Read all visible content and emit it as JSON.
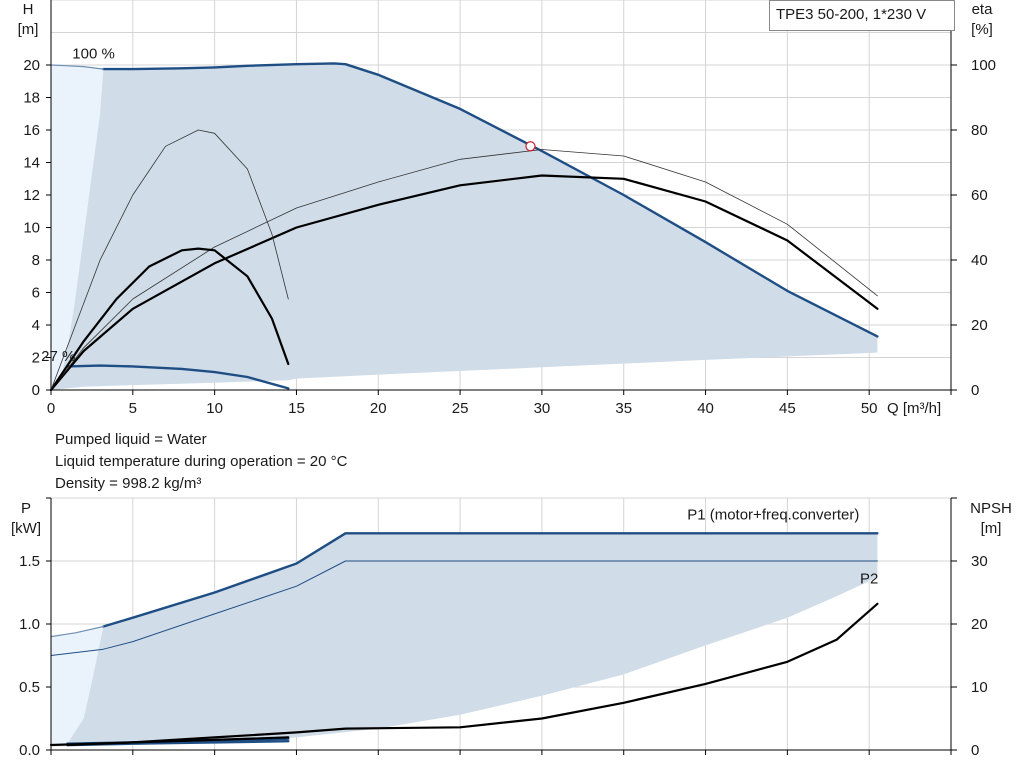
{
  "model": "TPE3 50-200, 1*230 V",
  "info": [
    "Pumped liquid = Water",
    "Liquid temperature during operation = 20 °C",
    "Density = 998.2 kg/m³"
  ],
  "colors": {
    "curve": "#1f4e85",
    "area": "#d0dce8",
    "area_light": "#eaf3fb",
    "grid": "#d4d4d4",
    "eff": "#000000"
  },
  "chart_data": [
    {
      "type": "line",
      "title": "",
      "x_axis": {
        "label": "Q [m³/h]",
        "range": [
          0,
          55
        ],
        "ticks": [
          0,
          5,
          10,
          15,
          20,
          25,
          30,
          35,
          40,
          45,
          50
        ]
      },
      "y_axis_left": {
        "label": [
          "H",
          "[m]"
        ],
        "range": [
          0,
          24
        ],
        "ticks": [
          0,
          2,
          4,
          6,
          8,
          10,
          12,
          14,
          16,
          18,
          20
        ]
      },
      "y_axis_right": {
        "label": [
          "eta",
          "[%]"
        ],
        "range": [
          0,
          120
        ],
        "ticks": [
          0,
          20,
          40,
          60,
          80,
          100
        ]
      },
      "grid": true,
      "annotations": [
        {
          "text": "100 %",
          "x": 1.3,
          "y": 20.7
        },
        {
          "text": "27 %",
          "x": -0.6,
          "y": 2.1
        }
      ],
      "operating_point": {
        "x": 29.3,
        "y": 15.0
      },
      "area_outer": [
        [
          0,
          20
        ],
        [
          0.8,
          19.95
        ],
        [
          1.6,
          19.9
        ],
        [
          2.4,
          19.85
        ],
        [
          3.2,
          19.8
        ],
        [
          3.2,
          19.75
        ],
        [
          5,
          19.75
        ],
        [
          8,
          19.8
        ],
        [
          10,
          19.85
        ],
        [
          12,
          19.95
        ],
        [
          15,
          20.05
        ],
        [
          17.3,
          20.1
        ],
        [
          18,
          20.05
        ],
        [
          20,
          19.4
        ],
        [
          25,
          17.3
        ],
        [
          30,
          14.7
        ],
        [
          35,
          12.0
        ],
        [
          40,
          9.1
        ],
        [
          45,
          6.1
        ],
        [
          50.5,
          3.3
        ],
        [
          50.5,
          2.3
        ],
        [
          40,
          1.85
        ],
        [
          30,
          1.4
        ],
        [
          20,
          0.95
        ],
        [
          15,
          0.7
        ],
        [
          14.5,
          0.6
        ],
        [
          10,
          0.45
        ],
        [
          5,
          0.3
        ],
        [
          2,
          0.2
        ],
        [
          0,
          0
        ]
      ],
      "area_light": [
        [
          0,
          20
        ],
        [
          0.8,
          19.95
        ],
        [
          1.6,
          19.9
        ],
        [
          2.4,
          19.85
        ],
        [
          3.2,
          19.75
        ],
        [
          3.0,
          17
        ],
        [
          2.6,
          14
        ],
        [
          2.2,
          11
        ],
        [
          1.8,
          8
        ],
        [
          1.4,
          5
        ],
        [
          1.0,
          2.5
        ],
        [
          0.7,
          1.2
        ],
        [
          0,
          0
        ]
      ],
      "series": [
        {
          "role": "head_max",
          "points": [
            [
              3.2,
              19.75
            ],
            [
              5,
              19.75
            ],
            [
              8,
              19.8
            ],
            [
              10,
              19.85
            ],
            [
              12,
              19.95
            ],
            [
              15,
              20.05
            ],
            [
              17.3,
              20.1
            ],
            [
              18,
              20.05
            ],
            [
              20,
              19.4
            ],
            [
              25,
              17.3
            ],
            [
              30,
              14.7
            ],
            [
              35,
              12.0
            ],
            [
              40,
              9.1
            ],
            [
              45,
              6.1
            ],
            [
              50.5,
              3.3
            ]
          ]
        },
        {
          "role": "head_max_light",
          "points": [
            [
              0,
              20
            ],
            [
              1,
              19.95
            ],
            [
              2,
              19.9
            ],
            [
              3.2,
              19.75
            ]
          ]
        },
        {
          "role": "head_min",
          "points": [
            [
              1,
              1.45
            ],
            [
              3,
              1.5
            ],
            [
              5,
              1.45
            ],
            [
              8,
              1.3
            ],
            [
              10,
              1.1
            ],
            [
              12,
              0.8
            ],
            [
              14.5,
              0.1
            ]
          ]
        },
        {
          "role": "eff_100",
          "y_axis": "right",
          "points": [
            [
              0,
              0
            ],
            [
              2,
              12
            ],
            [
              5,
              25
            ],
            [
              10,
              39
            ],
            [
              15,
              50
            ],
            [
              20,
              57
            ],
            [
              25,
              63
            ],
            [
              30,
              66
            ],
            [
              35,
              65
            ],
            [
              40,
              58
            ],
            [
              45,
              46
            ],
            [
              50.5,
              25
            ]
          ]
        },
        {
          "role": "eff_100_thin",
          "y_axis": "right",
          "points": [
            [
              0,
              0
            ],
            [
              2,
              13
            ],
            [
              5,
              28
            ],
            [
              10,
              44
            ],
            [
              15,
              56
            ],
            [
              20,
              64
            ],
            [
              25,
              71
            ],
            [
              30,
              74
            ],
            [
              35,
              72
            ],
            [
              40,
              64
            ],
            [
              45,
              51
            ],
            [
              50.5,
              29
            ]
          ]
        },
        {
          "role": "eff_27",
          "y_axis": "right",
          "points": [
            [
              0,
              0
            ],
            [
              2,
              15
            ],
            [
              4,
              28
            ],
            [
              6,
              38
            ],
            [
              8,
              43
            ],
            [
              9,
              43.5
            ],
            [
              10,
              43
            ],
            [
              12,
              35
            ],
            [
              13.5,
              22
            ],
            [
              14.5,
              8
            ]
          ]
        },
        {
          "role": "eff_27_thin",
          "y_axis": "right",
          "points": [
            [
              0,
              0
            ],
            [
              1.5,
              20
            ],
            [
              3,
              40
            ],
            [
              5,
              60
            ],
            [
              7,
              75
            ],
            [
              9,
              80
            ],
            [
              10,
              79
            ],
            [
              12,
              68
            ],
            [
              13.5,
              48
            ],
            [
              14.5,
              28
            ]
          ]
        }
      ]
    },
    {
      "type": "line",
      "title": "",
      "x_axis": {
        "range": [
          0,
          55
        ],
        "ticks": [
          0,
          5,
          10,
          15,
          20,
          25,
          30,
          35,
          40,
          45,
          50
        ]
      },
      "y_axis_left": {
        "label": [
          "P",
          "[kW]"
        ],
        "range": [
          0,
          2.0
        ],
        "ticks": [
          0.0,
          0.5,
          1.0,
          1.5
        ],
        "tick_labels": [
          "0.0",
          "0.5",
          "1.0",
          "1.5"
        ]
      },
      "y_axis_right": {
        "label": [
          "NPSH",
          "[m]"
        ],
        "range": [
          0,
          40
        ],
        "ticks": [
          0,
          10,
          20,
          30
        ],
        "tick_labels": [
          "0",
          "10",
          "20",
          "30"
        ]
      },
      "grid": true,
      "legend": [
        {
          "text": "P1 (motor+freq.converter)",
          "x": 49.4,
          "y": 1.87
        },
        {
          "text": "P2",
          "x": 50.0,
          "y": 1.36
        }
      ],
      "area_outer": [
        [
          0,
          0.9
        ],
        [
          1.5,
          0.93
        ],
        [
          3.2,
          0.98
        ],
        [
          5,
          1.05
        ],
        [
          10,
          1.25
        ],
        [
          15,
          1.48
        ],
        [
          18,
          1.72
        ],
        [
          20,
          1.72
        ],
        [
          30,
          1.72
        ],
        [
          40,
          1.72
        ],
        [
          50.5,
          1.72
        ],
        [
          50.5,
          1.37
        ],
        [
          48,
          1.22
        ],
        [
          45,
          1.05
        ],
        [
          40,
          0.83
        ],
        [
          35,
          0.6
        ],
        [
          30,
          0.43
        ],
        [
          25,
          0.28
        ],
        [
          20,
          0.17
        ],
        [
          15,
          0.1
        ],
        [
          10,
          0.06
        ],
        [
          5,
          0.04
        ],
        [
          1.5,
          0.03
        ],
        [
          0,
          0.03
        ]
      ],
      "area_light": [
        [
          0,
          0.9
        ],
        [
          1.5,
          0.93
        ],
        [
          3.2,
          0.98
        ],
        [
          2.6,
          0.6
        ],
        [
          2.0,
          0.25
        ],
        [
          1.0,
          0.05
        ],
        [
          0,
          0.03
        ]
      ],
      "series": [
        {
          "role": "P1",
          "name": "P1 (motor+freq.converter)",
          "points": [
            [
              3.2,
              0.98
            ],
            [
              5,
              1.05
            ],
            [
              10,
              1.25
            ],
            [
              15,
              1.48
            ],
            [
              18,
              1.72
            ],
            [
              20,
              1.72
            ],
            [
              30,
              1.72
            ],
            [
              40,
              1.72
            ],
            [
              50.5,
              1.72
            ]
          ]
        },
        {
          "role": "P1_light",
          "points": [
            [
              0,
              0.9
            ],
            [
              1.5,
              0.93
            ],
            [
              3.2,
              0.98
            ]
          ]
        },
        {
          "role": "P2",
          "name": "P2",
          "points": [
            [
              0,
              0.75
            ],
            [
              3.2,
              0.8
            ],
            [
              5,
              0.86
            ],
            [
              10,
              1.08
            ],
            [
              15,
              1.3
            ],
            [
              18,
              1.5
            ],
            [
              20,
              1.5
            ],
            [
              30,
              1.5
            ],
            [
              40,
              1.5
            ],
            [
              50.5,
              1.5
            ]
          ]
        },
        {
          "role": "P_min",
          "points": [
            [
              1,
              0.05
            ],
            [
              5,
              0.06
            ],
            [
              10,
              0.07
            ],
            [
              14.5,
              0.09
            ]
          ]
        },
        {
          "role": "P_min2",
          "points": [
            [
              1,
              0.04
            ],
            [
              5,
              0.05
            ],
            [
              10,
              0.06
            ],
            [
              14.5,
              0.07
            ]
          ]
        },
        {
          "role": "NPSH",
          "y_axis": "right",
          "points": [
            [
              0,
              0.8
            ],
            [
              5,
              1.2
            ],
            [
              10,
              2.0
            ],
            [
              15,
              2.8
            ],
            [
              18,
              3.4
            ],
            [
              25,
              3.6
            ],
            [
              30,
              5.0
            ],
            [
              35,
              7.5
            ],
            [
              40,
              10.5
            ],
            [
              45,
              14.0
            ],
            [
              48,
              17.5
            ],
            [
              50.5,
              23.2
            ]
          ]
        },
        {
          "role": "NPSH_27",
          "y_axis": "right",
          "points": [
            [
              1,
              0.8
            ],
            [
              5,
              1.2
            ],
            [
              10,
              1.6
            ],
            [
              14.5,
              2.0
            ]
          ]
        }
      ]
    }
  ]
}
